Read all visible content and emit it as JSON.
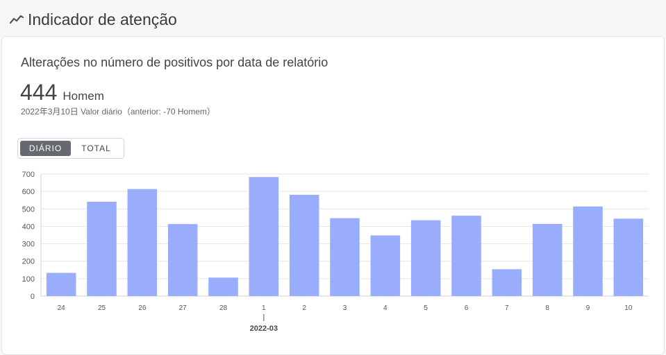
{
  "header": {
    "title": "Indicador de atenção",
    "icon": "trend-line-icon"
  },
  "card": {
    "title": "Alterações no número de positivos por data de relatório",
    "value": "444",
    "unit": "Homem",
    "subline": "2022年3月10日 Valor diário（anterior: -70 Homem）"
  },
  "toggle": {
    "options": [
      {
        "label": "DIÁRIO",
        "active": true
      },
      {
        "label": "TOTAL",
        "active": false
      }
    ]
  },
  "chart_data": {
    "type": "bar",
    "categories": [
      "24",
      "25",
      "26",
      "27",
      "28",
      "1",
      "2",
      "3",
      "4",
      "5",
      "6",
      "7",
      "8",
      "9",
      "10"
    ],
    "values": [
      133,
      541,
      614,
      413,
      106,
      683,
      581,
      447,
      348,
      435,
      461,
      154,
      414,
      514,
      444
    ],
    "month_label": "2022-03",
    "yticks": [
      0,
      100,
      200,
      300,
      400,
      500,
      600,
      700
    ],
    "ylim": [
      0,
      700
    ],
    "bar_color": "#9aadfd",
    "grid": true
  }
}
